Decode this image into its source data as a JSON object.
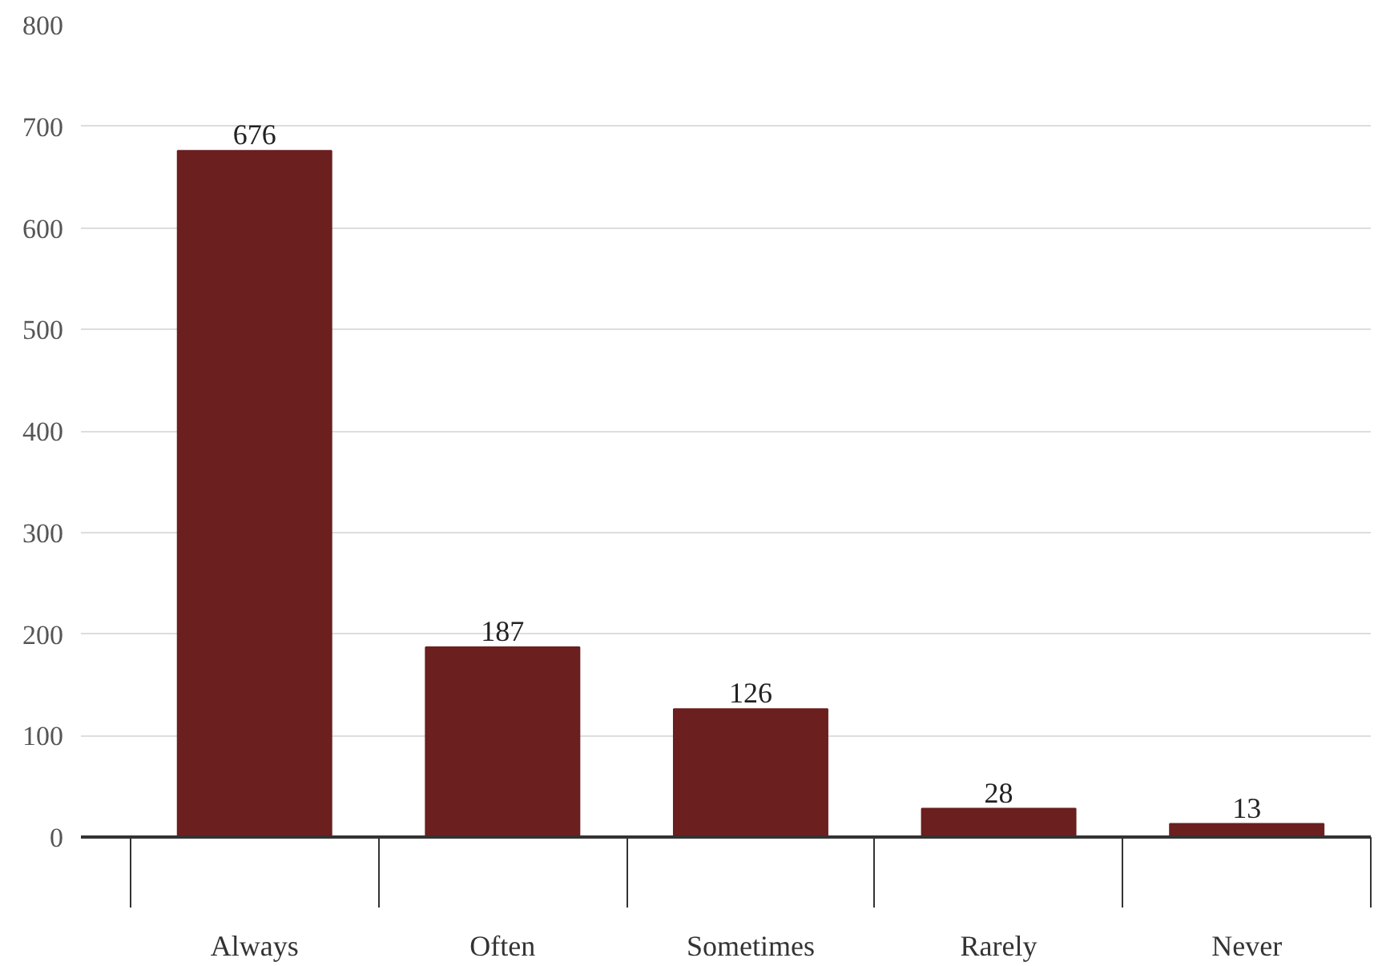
{
  "chart_data": {
    "type": "bar",
    "categories": [
      "Always",
      "Often",
      "Sometimes",
      "Rarely",
      "Never"
    ],
    "values": [
      676,
      187,
      126,
      28,
      13
    ],
    "color": "#6b1f1f",
    "ylim": [
      0,
      800
    ],
    "yticks": [
      0,
      100,
      200,
      300,
      400,
      500,
      600,
      700,
      800
    ],
    "grid": "y",
    "data_labels": true
  }
}
